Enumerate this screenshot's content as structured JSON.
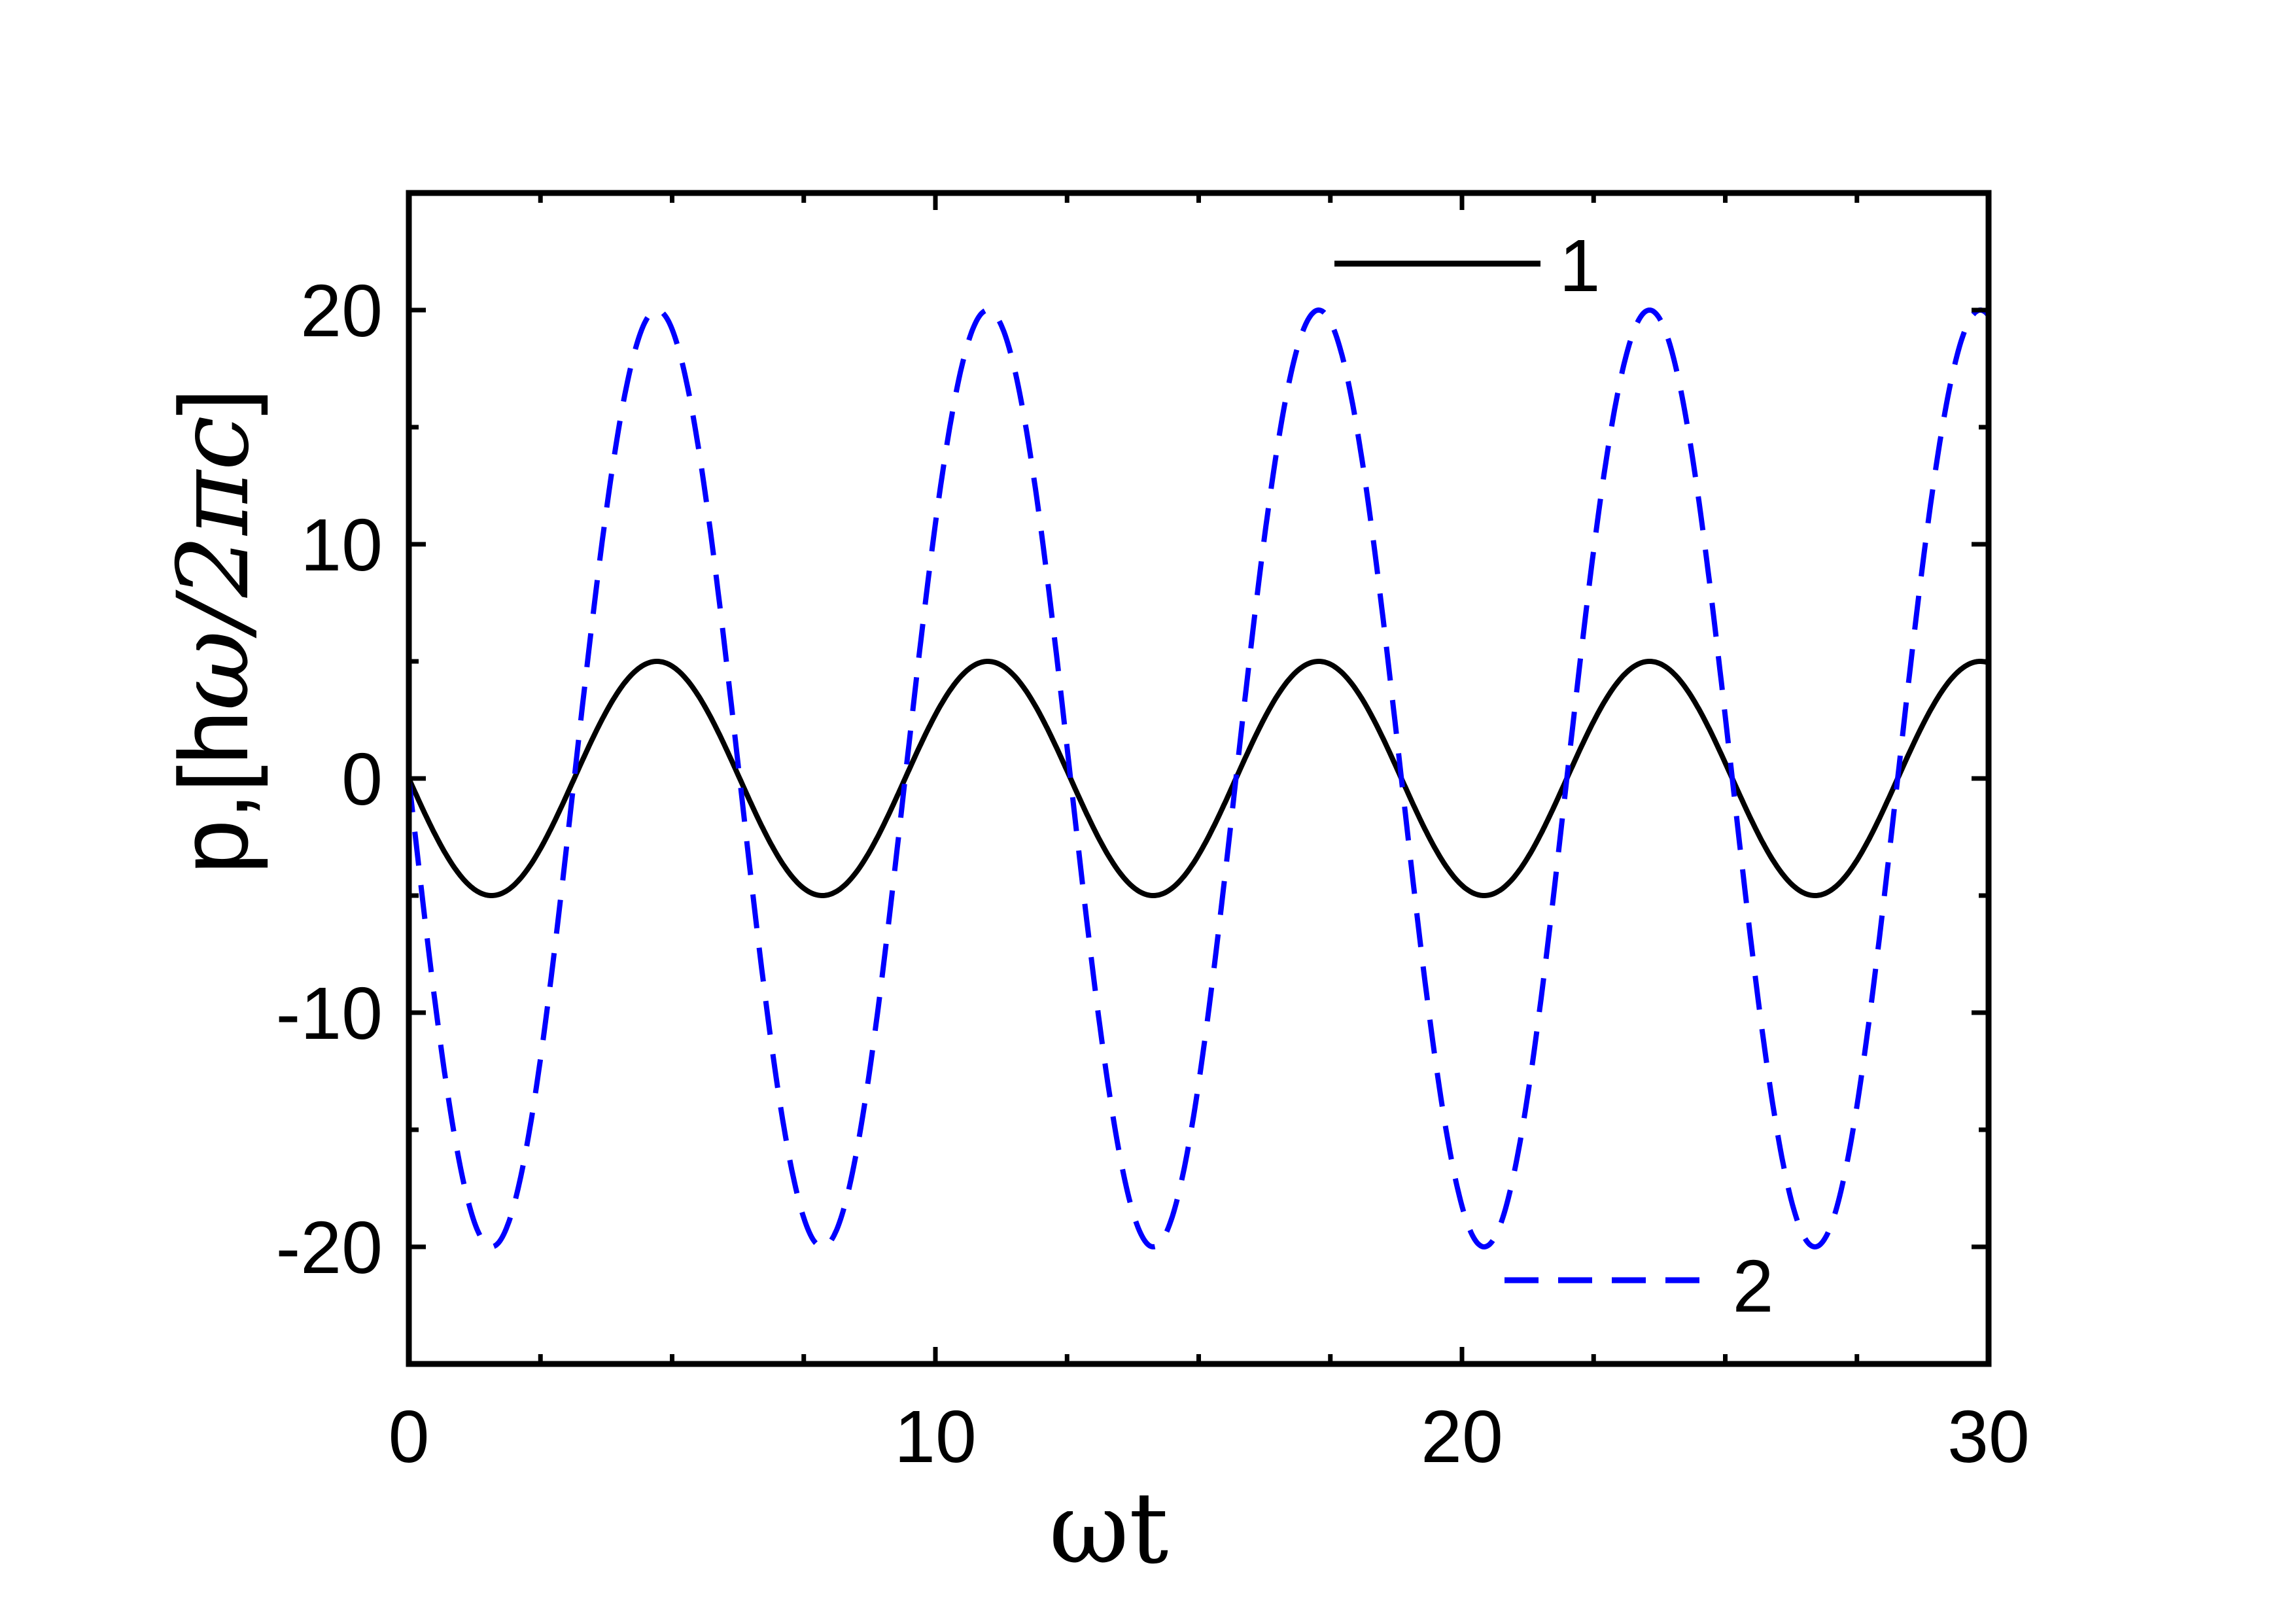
{
  "chart_data": {
    "type": "line",
    "title": "",
    "xlabel": "ωt",
    "ylabel": {
      "prefix": "p,[h",
      "unit": "ω/2πc",
      "suffix": "]"
    },
    "xlim": [
      0,
      30
    ],
    "ylim": [
      -25,
      25
    ],
    "xticks": [
      0,
      10,
      20,
      30
    ],
    "xtick_labels": [
      "0",
      "10",
      "20",
      "30"
    ],
    "yticks": [
      -20,
      -10,
      0,
      10,
      20
    ],
    "ytick_labels": [
      "-20",
      "-10",
      "0",
      "10",
      "20"
    ],
    "grid": false,
    "legend": [
      {
        "label": "1",
        "series": 0,
        "placement": "top-right"
      },
      {
        "label": "2",
        "series": 1,
        "placement": "bottom-right"
      }
    ],
    "series": [
      {
        "style": "solid",
        "color": "#000000",
        "function": "-5*sin(x)",
        "x": [
          0,
          1.57,
          3.14,
          4.71,
          6.28,
          7.85,
          9.42,
          11.0,
          12.57,
          14.14,
          15.71,
          17.28,
          18.85,
          20.42,
          21.99,
          23.56,
          25.13,
          26.7,
          28.27,
          29.85,
          30
        ],
        "y": [
          0,
          -5,
          0,
          5,
          0,
          -5,
          0,
          5,
          0,
          -5,
          0,
          5,
          0,
          -5,
          0,
          5,
          0,
          -5,
          0,
          5,
          5
        ]
      },
      {
        "style": "dashed",
        "color": "#0000ff",
        "function": "-20*sin(x)",
        "x": [
          0,
          1.57,
          3.14,
          4.71,
          6.28,
          7.85,
          9.42,
          11.0,
          12.57,
          14.14,
          15.71,
          17.28,
          18.85,
          20.42,
          21.99,
          23.56,
          25.13,
          26.7,
          28.27,
          29.85,
          30
        ],
        "y": [
          0,
          -20,
          0,
          20,
          0,
          -20,
          0,
          20,
          0,
          -20,
          0,
          20,
          0,
          -20,
          0,
          20,
          0,
          -20,
          0,
          20,
          20
        ]
      }
    ]
  }
}
